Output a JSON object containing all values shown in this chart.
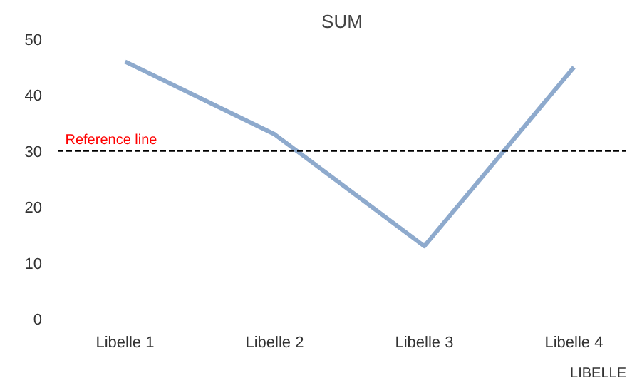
{
  "chart_data": {
    "type": "line",
    "title": "SUM",
    "xlabel": "LIBELLE",
    "categories": [
      "Libelle 1",
      "Libelle 2",
      "Libelle 3",
      "Libelle 4"
    ],
    "series": [
      {
        "color": "#8eaacd",
        "values": [
          46,
          33,
          13,
          45
        ]
      }
    ],
    "ylim": [
      0,
      50
    ],
    "yticks": [
      0,
      10,
      20,
      30,
      40,
      50
    ],
    "grid": false,
    "marker": "none",
    "line_style": "solid",
    "ref_lines": [
      {
        "axis": "y",
        "value": 30,
        "label": "Reference line",
        "color": "#000000",
        "line_style": "dashed"
      }
    ]
  }
}
